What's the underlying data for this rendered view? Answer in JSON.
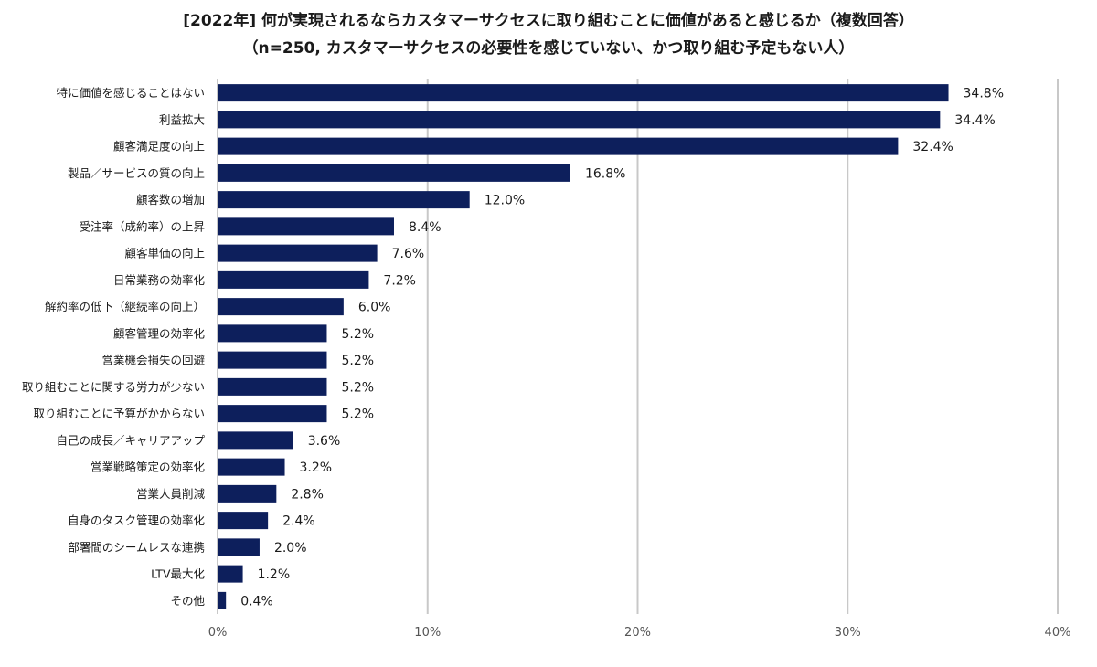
{
  "chart_data": {
    "type": "bar",
    "orientation": "horizontal",
    "title": "[2022年] 何が実現されるならカスタマーサクセスに取り組むことに価値があると感じるか（複数回答）",
    "subtitle": "（n=250, カスタマーサクセスの必要性を感じていない、かつ取り組む予定もない人）",
    "categories": [
      "特に価値を感じることはない",
      "利益拡大",
      "顧客満足度の向上",
      "製品／サービスの質の向上",
      "顧客数の増加",
      "受注率（成約率）の上昇",
      "顧客単価の向上",
      "日常業務の効率化",
      "解約率の低下（継続率の向上）",
      "顧客管理の効率化",
      "営業機会損失の回避",
      "取り組むことに関する労力が少ない",
      "取り組むことに予算がかからない",
      "自己の成長／キャリアアップ",
      "営業戦略策定の効率化",
      "営業人員削減",
      "自身のタスク管理の効率化",
      "部署間のシームレスな連携",
      "LTV最大化",
      "その他"
    ],
    "values": [
      34.8,
      34.4,
      32.4,
      16.8,
      12.0,
      8.4,
      7.6,
      7.2,
      6.0,
      5.2,
      5.2,
      5.2,
      5.2,
      3.6,
      3.2,
      2.8,
      2.4,
      2.0,
      1.2,
      0.4
    ],
    "value_labels": [
      "34.8%",
      "34.4%",
      "32.4%",
      "16.8%",
      "12.0%",
      "8.4%",
      "7.6%",
      "7.2%",
      "6.0%",
      "5.2%",
      "5.2%",
      "5.2%",
      "5.2%",
      "3.6%",
      "3.2%",
      "2.8%",
      "2.4%",
      "2.0%",
      "1.2%",
      "0.4%"
    ],
    "xlim": [
      0,
      40
    ],
    "xticks": [
      0,
      10,
      20,
      30,
      40
    ],
    "xtick_labels": [
      "0%",
      "10%",
      "20%",
      "30%",
      "40%"
    ],
    "xlabel": "",
    "ylabel": "",
    "grid": true,
    "legend": "none",
    "bar_color": "#0d1f5c",
    "grid_color": "#c8c8c8"
  }
}
